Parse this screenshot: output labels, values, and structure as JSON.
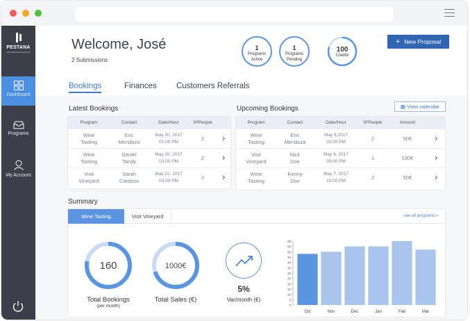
{
  "brand": {
    "name": "PESTANA",
    "sub": "international development"
  },
  "nav": [
    {
      "label": "Dashboard",
      "icon": "dashboard-grid-icon",
      "active": true
    },
    {
      "label": "Programs",
      "icon": "inbox-tray-icon"
    },
    {
      "label": "My Account",
      "icon": "user-icon"
    }
  ],
  "header": {
    "welcome": "Welcome, José",
    "submissions": "2 Submissions",
    "stats": [
      {
        "value": "1",
        "label_line1": "Programs",
        "label_line2": "Active"
      },
      {
        "value": "1",
        "label_line1": "Programs",
        "label_line2": "Pending"
      }
    ],
    "credits": {
      "value": "100",
      "label": "Credits",
      "fraction": 0.8
    },
    "new_proposal": "New Proposal"
  },
  "tabs": [
    "Bookings",
    "Finances",
    "Customers Referrals"
  ],
  "latest": {
    "title": "Latest Bookings",
    "columns": [
      "Program",
      "Contact",
      "Date/Hour",
      "NºPeople"
    ],
    "rows": [
      {
        "program": [
          "Wine",
          "Tasting"
        ],
        "contact": [
          "Eric",
          "Mendoza"
        ],
        "date": [
          "May 20, 2017",
          "01:00 PM"
        ],
        "people": "2"
      },
      {
        "program": [
          "Wine",
          "Tasting"
        ],
        "contact": [
          "Daniel",
          "Tandy"
        ],
        "date": [
          "May 20, 2017",
          "03:00 PM"
        ],
        "people": "2"
      },
      {
        "program": [
          "Visit",
          "Vineyard"
        ],
        "contact": [
          "Sarah",
          "Cardoso"
        ],
        "date": [
          "May 22, 2017",
          "03:00 PM"
        ],
        "people": "2"
      }
    ]
  },
  "upcoming": {
    "title": "Upcoming Bookings",
    "view_calendar": "View calendar",
    "columns": [
      "Program",
      "Contact",
      "Date/Hour",
      "NºPeople",
      "Amount"
    ],
    "rows": [
      {
        "program": [
          "Wine",
          "Tasting"
        ],
        "contact": [
          "Eric",
          "Mendoza"
        ],
        "date": [
          "May 6,2017",
          "02:00 PM"
        ],
        "people": "2",
        "amount": "50€"
      },
      {
        "program": [
          "Visit",
          "Vineyard"
        ],
        "contact": [
          "Nick",
          "Doe"
        ],
        "date": [
          "May 6, 2017",
          "09:00 PM"
        ],
        "people": "1",
        "amount": "100€"
      },
      {
        "program": [
          "Wine",
          "Tasting"
        ],
        "contact": [
          "Kenny",
          "Doe"
        ],
        "date": [
          "May 7, 2017",
          "10:00 PM"
        ],
        "people": "2",
        "amount": "50€"
      }
    ]
  },
  "summary": {
    "title": "Summary",
    "tabs": [
      "Wine Tasting",
      "Visit Vineyard"
    ],
    "see_all": "see all programs »",
    "total_bookings": {
      "value": "160",
      "label": "Total Bookings",
      "sub": "(per month)",
      "fraction": 0.78
    },
    "total_sales": {
      "value": "1000€",
      "label": "Total Sales (€)",
      "fraction": 0.7
    },
    "var": {
      "value": "5%",
      "label": "Var/month (€)"
    }
  },
  "chart_data": {
    "type": "bar",
    "categories": [
      "Oct",
      "Nov",
      "Dec",
      "Jan",
      "Feb",
      "Mar"
    ],
    "values": [
      48,
      50,
      55,
      55,
      60,
      52
    ],
    "yticks": [
      "0",
      "5",
      "10",
      "15",
      "20",
      "25",
      "30",
      "35",
      "40",
      "45",
      "50",
      "55",
      "60"
    ],
    "ylim": [
      0,
      60
    ],
    "highlight_index": 0,
    "colors": {
      "highlight": "#5b95e2",
      "normal": "#a8c5ee"
    }
  }
}
